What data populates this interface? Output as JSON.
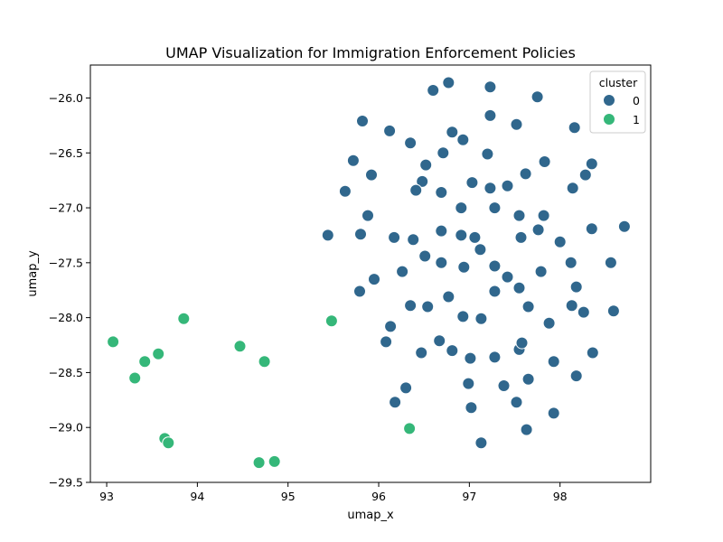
{
  "chart_data": {
    "type": "scatter",
    "title": "UMAP Visualization for Immigration Enforcement Policies",
    "xlabel": "umap_x",
    "ylabel": "umap_y",
    "xlim": [
      92.82,
      99.0
    ],
    "ylim": [
      -29.5,
      -25.7
    ],
    "xticks": [
      93,
      94,
      95,
      96,
      97,
      98
    ],
    "yticks": [
      -26.0,
      -26.5,
      -27.0,
      -27.5,
      -28.0,
      -28.5,
      -29.0,
      -29.5
    ],
    "grid": false,
    "legend": {
      "title": "cluster",
      "position": "top-right"
    },
    "series": [
      {
        "name": "0",
        "color": "#30678d",
        "points": [
          [
            96.6,
            -25.93
          ],
          [
            96.77,
            -25.86
          ],
          [
            97.23,
            -25.9
          ],
          [
            97.75,
            -25.99
          ],
          [
            95.82,
            -26.21
          ],
          [
            96.12,
            -26.3
          ],
          [
            96.81,
            -26.31
          ],
          [
            96.93,
            -26.38
          ],
          [
            97.23,
            -26.16
          ],
          [
            97.52,
            -26.24
          ],
          [
            98.16,
            -26.27
          ],
          [
            95.72,
            -26.57
          ],
          [
            96.35,
            -26.41
          ],
          [
            96.52,
            -26.61
          ],
          [
            96.71,
            -26.5
          ],
          [
            97.2,
            -26.51
          ],
          [
            97.83,
            -26.58
          ],
          [
            98.35,
            -26.6
          ],
          [
            95.92,
            -26.7
          ],
          [
            96.48,
            -26.76
          ],
          [
            97.62,
            -26.69
          ],
          [
            98.28,
            -26.7
          ],
          [
            95.63,
            -26.85
          ],
          [
            96.41,
            -26.84
          ],
          [
            96.69,
            -26.86
          ],
          [
            97.03,
            -26.77
          ],
          [
            97.23,
            -26.82
          ],
          [
            97.42,
            -26.8
          ],
          [
            98.14,
            -26.82
          ],
          [
            95.88,
            -27.07
          ],
          [
            96.91,
            -27.0
          ],
          [
            97.28,
            -27.0
          ],
          [
            97.55,
            -27.07
          ],
          [
            97.82,
            -27.07
          ],
          [
            95.44,
            -27.25
          ],
          [
            95.8,
            -27.24
          ],
          [
            96.17,
            -27.27
          ],
          [
            96.38,
            -27.29
          ],
          [
            96.69,
            -27.21
          ],
          [
            96.91,
            -27.25
          ],
          [
            97.06,
            -27.27
          ],
          [
            97.57,
            -27.27
          ],
          [
            97.76,
            -27.2
          ],
          [
            98.0,
            -27.31
          ],
          [
            98.35,
            -27.19
          ],
          [
            98.71,
            -27.17
          ],
          [
            97.12,
            -27.38
          ],
          [
            96.51,
            -27.44
          ],
          [
            96.69,
            -27.5
          ],
          [
            96.94,
            -27.54
          ],
          [
            97.28,
            -27.53
          ],
          [
            97.42,
            -27.63
          ],
          [
            97.79,
            -27.58
          ],
          [
            98.12,
            -27.5
          ],
          [
            98.56,
            -27.5
          ],
          [
            96.26,
            -27.58
          ],
          [
            95.79,
            -27.76
          ],
          [
            95.95,
            -27.65
          ],
          [
            96.35,
            -27.89
          ],
          [
            96.54,
            -27.9
          ],
          [
            96.77,
            -27.81
          ],
          [
            97.28,
            -27.76
          ],
          [
            97.55,
            -27.73
          ],
          [
            97.65,
            -27.9
          ],
          [
            98.13,
            -27.89
          ],
          [
            98.18,
            -27.72
          ],
          [
            98.26,
            -27.95
          ],
          [
            98.59,
            -27.94
          ],
          [
            96.93,
            -27.99
          ],
          [
            97.13,
            -28.01
          ],
          [
            97.88,
            -28.05
          ],
          [
            96.13,
            -28.08
          ],
          [
            96.08,
            -28.22
          ],
          [
            96.47,
            -28.32
          ],
          [
            96.67,
            -28.21
          ],
          [
            96.81,
            -28.3
          ],
          [
            97.01,
            -28.37
          ],
          [
            97.28,
            -28.36
          ],
          [
            97.55,
            -28.29
          ],
          [
            97.58,
            -28.23
          ],
          [
            97.93,
            -28.4
          ],
          [
            98.36,
            -28.32
          ],
          [
            96.99,
            -28.6
          ],
          [
            97.38,
            -28.62
          ],
          [
            97.65,
            -28.56
          ],
          [
            98.18,
            -28.53
          ],
          [
            96.18,
            -28.77
          ],
          [
            96.3,
            -28.64
          ],
          [
            97.02,
            -28.82
          ],
          [
            97.52,
            -28.77
          ],
          [
            97.93,
            -28.87
          ],
          [
            97.13,
            -29.14
          ],
          [
            97.63,
            -29.02
          ]
        ]
      },
      {
        "name": "1",
        "color": "#35b779",
        "points": [
          [
            93.07,
            -28.22
          ],
          [
            93.31,
            -28.55
          ],
          [
            93.42,
            -28.4
          ],
          [
            93.57,
            -28.33
          ],
          [
            93.85,
            -28.01
          ],
          [
            93.64,
            -29.1
          ],
          [
            93.68,
            -29.14
          ],
          [
            94.47,
            -28.26
          ],
          [
            94.74,
            -28.4
          ],
          [
            94.68,
            -29.32
          ],
          [
            94.85,
            -29.31
          ],
          [
            95.48,
            -28.03
          ],
          [
            96.34,
            -29.01
          ]
        ]
      }
    ]
  }
}
